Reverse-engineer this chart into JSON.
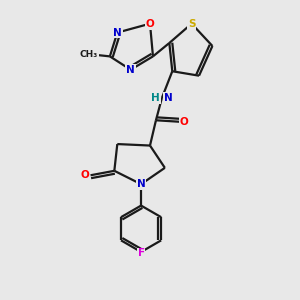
{
  "bg_color": "#e8e8e8",
  "bond_color": "#1a1a1a",
  "atom_colors": {
    "N": "#0000cc",
    "O": "#ff0000",
    "S": "#ccaa00",
    "F": "#dd00dd",
    "C": "#1a1a1a",
    "H": "#008888"
  },
  "line_width": 1.6,
  "figsize": [
    3.0,
    3.0
  ],
  "dpi": 100
}
